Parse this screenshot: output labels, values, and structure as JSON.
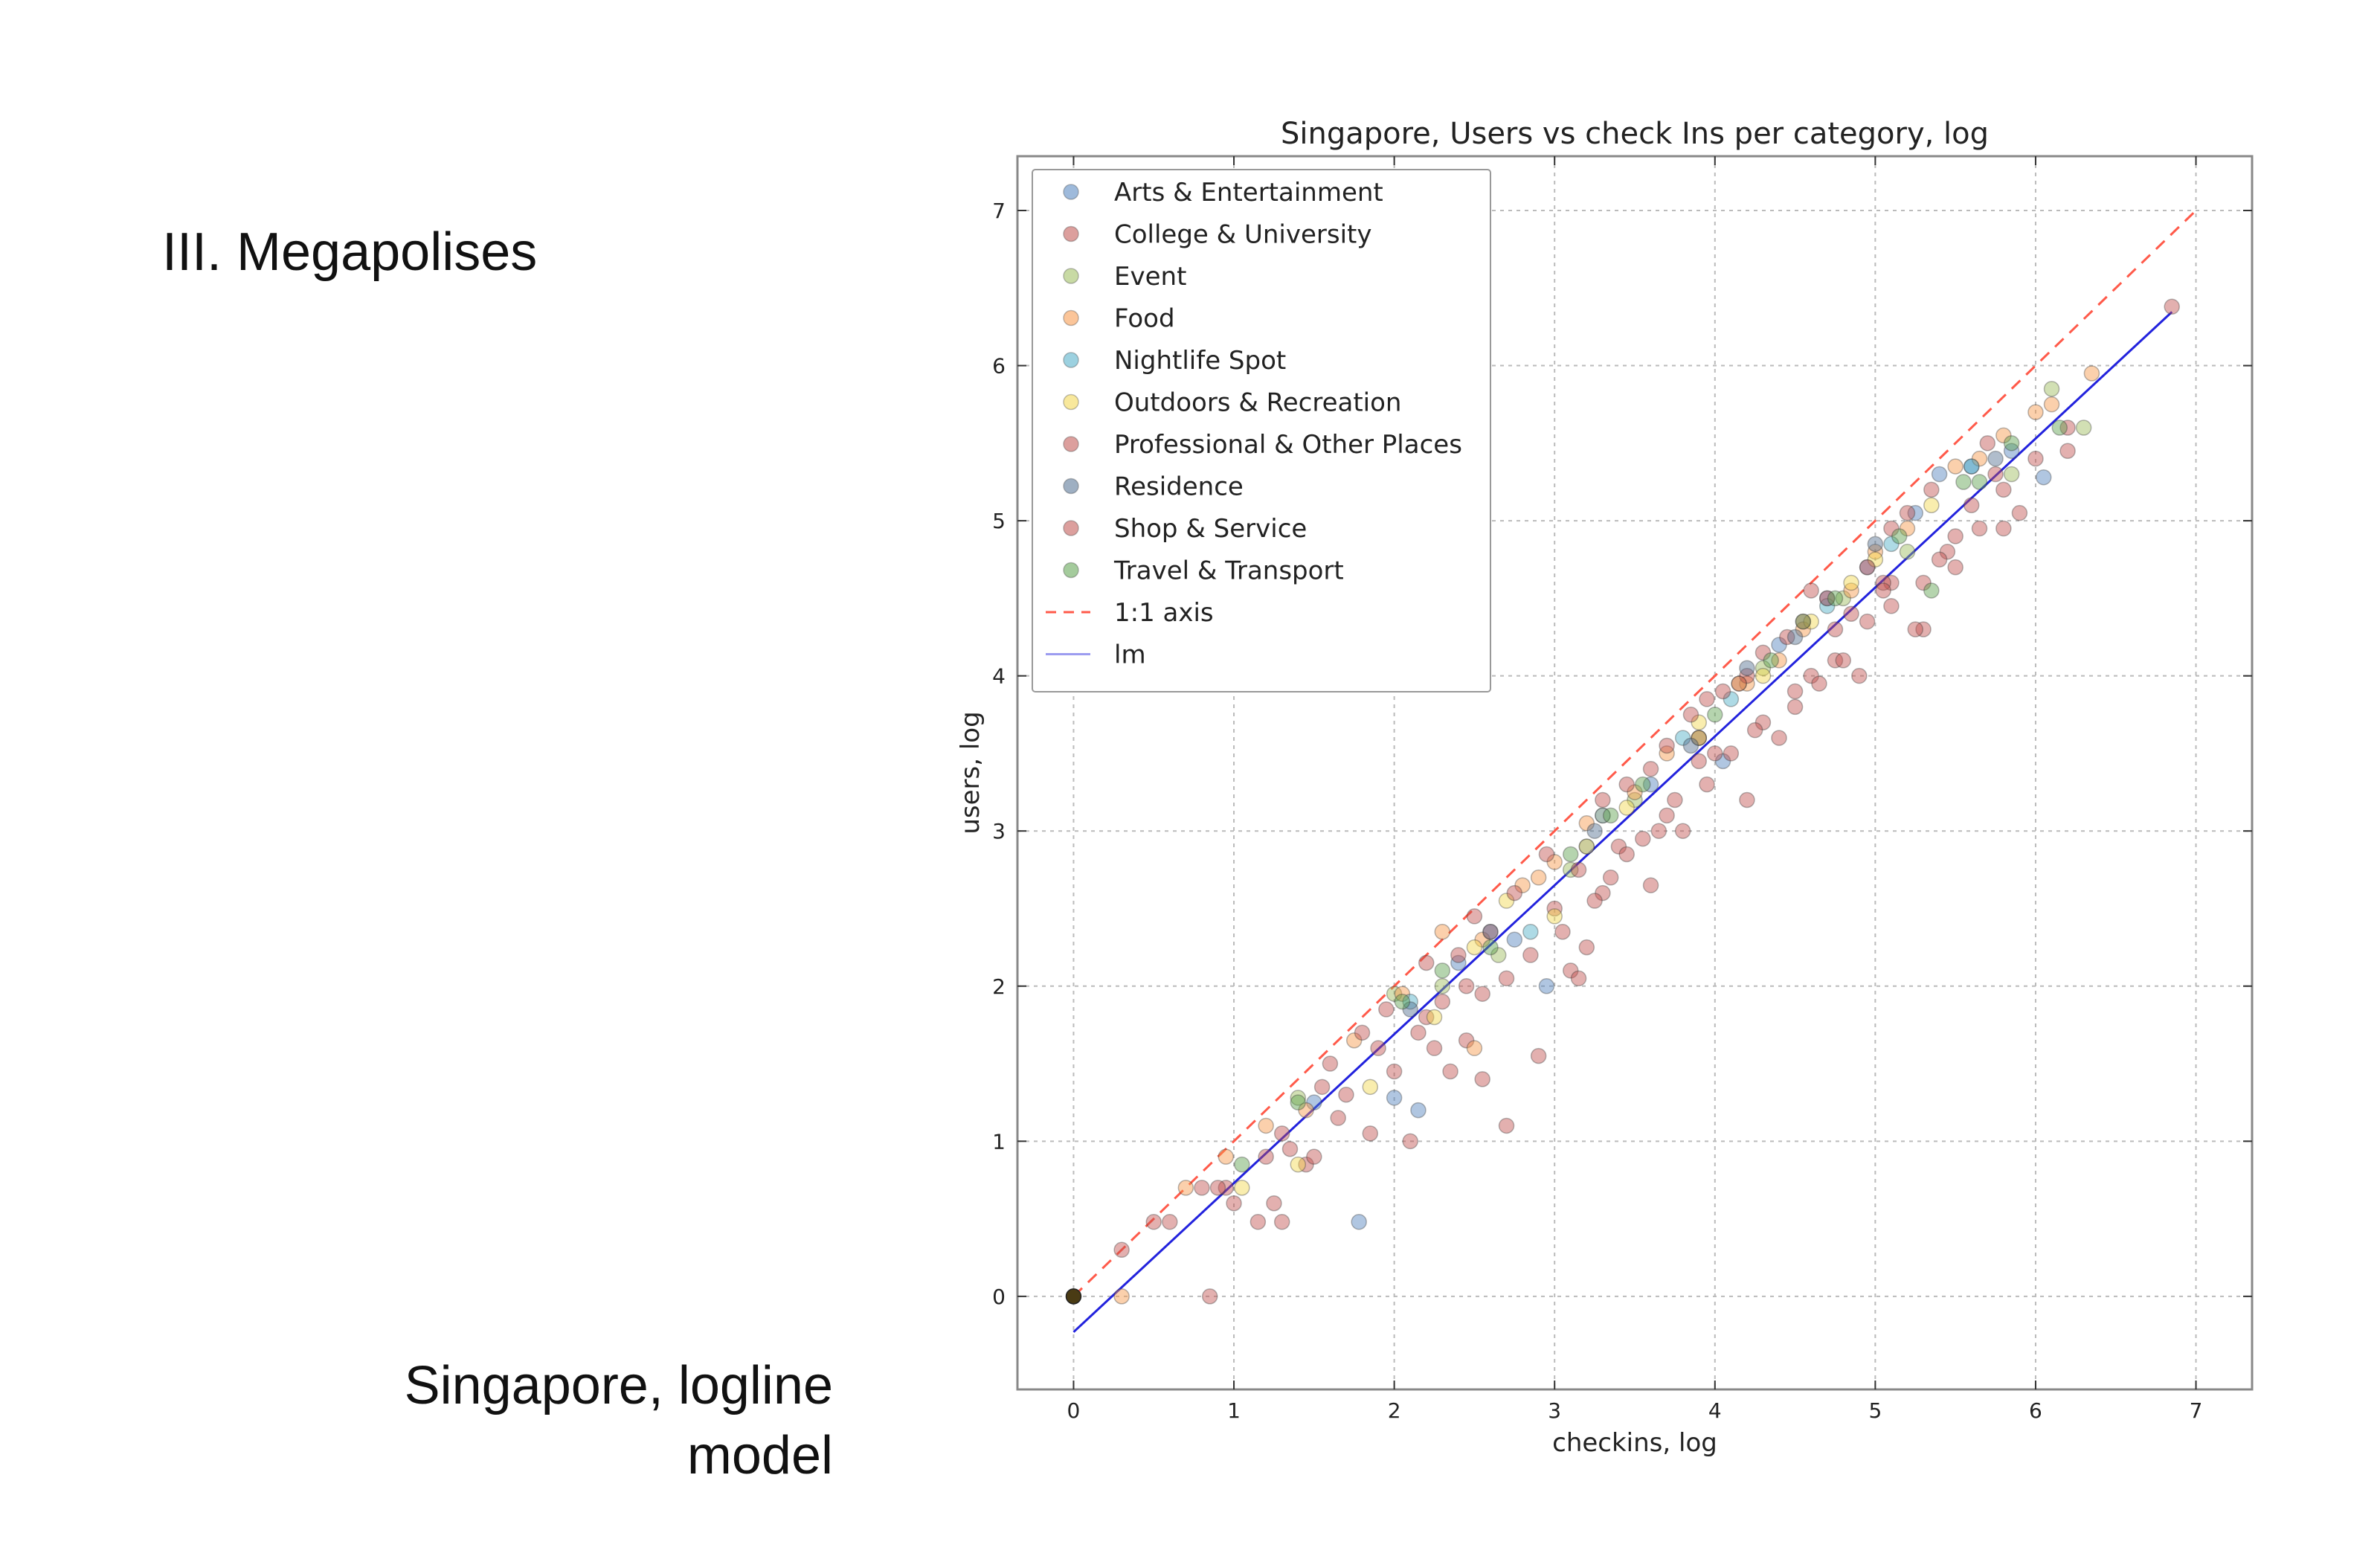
{
  "slide": {
    "heading": "III. Megapolises",
    "caption_line1": "Singapore, logline",
    "caption_line2": "model"
  },
  "chart_data": {
    "type": "scatter",
    "title": "Singapore, Users vs check Ins per category, log",
    "xlabel": "checkins, log",
    "ylabel": "users, log",
    "xlim": [
      -0.35,
      7.35
    ],
    "ylim": [
      -0.6,
      7.35
    ],
    "xticks": [
      0,
      1,
      2,
      3,
      4,
      5,
      6,
      7
    ],
    "yticks": [
      0,
      1,
      2,
      3,
      4,
      5,
      6,
      7
    ],
    "grid": true,
    "legend_position": "upper-left",
    "series": [
      {
        "name": "Arts & Entertainment",
        "color": "#4f81bd",
        "points": [
          [
            1.78,
            0.48
          ],
          [
            2.15,
            1.2
          ],
          [
            2.0,
            1.28
          ],
          [
            2.95,
            2.0
          ],
          [
            3.2,
            2.9
          ],
          [
            3.6,
            3.3
          ],
          [
            4.05,
            3.45
          ],
          [
            4.4,
            4.2
          ],
          [
            4.95,
            4.7
          ],
          [
            5.25,
            5.05
          ],
          [
            5.4,
            5.3
          ],
          [
            5.85,
            5.45
          ],
          [
            6.05,
            5.28
          ],
          [
            1.5,
            1.25
          ],
          [
            2.4,
            2.15
          ],
          [
            3.9,
            3.6
          ],
          [
            4.7,
            4.5
          ],
          [
            5.6,
            5.35
          ],
          [
            2.75,
            2.3
          ]
        ]
      },
      {
        "name": "College & University",
        "color": "#c0504d",
        "points": [
          [
            0.85,
            0.0
          ],
          [
            1.0,
            0.6
          ],
          [
            1.15,
            0.48
          ],
          [
            1.3,
            0.48
          ],
          [
            1.45,
            0.85
          ],
          [
            1.85,
            1.05
          ],
          [
            2.1,
            1.0
          ],
          [
            2.35,
            1.45
          ],
          [
            2.7,
            1.1
          ],
          [
            2.9,
            1.55
          ],
          [
            3.2,
            2.25
          ],
          [
            3.55,
            2.95
          ],
          [
            3.8,
            3.0
          ],
          [
            4.2,
            3.2
          ],
          [
            4.5,
            3.8
          ],
          [
            4.9,
            4.0
          ],
          [
            5.3,
            4.3
          ],
          [
            5.8,
            4.95
          ],
          [
            6.0,
            5.4
          ],
          [
            6.2,
            5.45
          ],
          [
            1.7,
            1.3
          ],
          [
            2.55,
            1.95
          ],
          [
            3.0,
            2.5
          ],
          [
            3.4,
            2.9
          ],
          [
            4.0,
            3.5
          ],
          [
            4.6,
            4.0
          ],
          [
            5.1,
            4.6
          ],
          [
            5.6,
            5.1
          ],
          [
            0.95,
            0.7
          ],
          [
            1.2,
            0.9
          ],
          [
            1.6,
            1.5
          ],
          [
            2.2,
            1.8
          ],
          [
            2.45,
            1.65
          ],
          [
            3.1,
            2.1
          ],
          [
            3.3,
            2.6
          ],
          [
            3.7,
            3.1
          ],
          [
            4.3,
            3.7
          ],
          [
            4.75,
            4.1
          ],
          [
            5.45,
            4.8
          ],
          [
            5.75,
            5.3
          ]
        ]
      },
      {
        "name": "Event",
        "color": "#9bbb59",
        "points": [
          [
            2.0,
            1.95
          ],
          [
            2.65,
            2.2
          ],
          [
            3.1,
            2.75
          ],
          [
            3.5,
            3.2
          ],
          [
            4.3,
            4.05
          ],
          [
            5.2,
            4.8
          ],
          [
            6.1,
            5.85
          ],
          [
            6.3,
            5.6
          ],
          [
            1.4,
            1.28
          ],
          [
            2.3,
            2.0
          ],
          [
            3.9,
            3.6
          ],
          [
            4.8,
            4.5
          ],
          [
            5.85,
            5.3
          ]
        ]
      },
      {
        "name": "Food",
        "color": "#f79646",
        "points": [
          [
            0.3,
            0.0
          ],
          [
            0.7,
            0.7
          ],
          [
            0.95,
            0.9
          ],
          [
            1.2,
            1.1
          ],
          [
            1.45,
            1.2
          ],
          [
            1.75,
            1.65
          ],
          [
            2.3,
            2.35
          ],
          [
            2.55,
            2.3
          ],
          [
            2.8,
            2.65
          ],
          [
            3.2,
            3.05
          ],
          [
            3.5,
            3.25
          ],
          [
            3.9,
            3.6
          ],
          [
            4.2,
            3.95
          ],
          [
            4.55,
            4.3
          ],
          [
            4.85,
            4.55
          ],
          [
            5.2,
            4.95
          ],
          [
            5.5,
            5.35
          ],
          [
            5.8,
            5.55
          ],
          [
            6.1,
            5.75
          ],
          [
            6.35,
            5.95
          ],
          [
            2.05,
            1.95
          ],
          [
            2.5,
            1.6
          ],
          [
            3.0,
            2.8
          ],
          [
            3.7,
            3.5
          ],
          [
            4.4,
            4.1
          ],
          [
            5.0,
            4.8
          ],
          [
            5.65,
            5.4
          ],
          [
            6.0,
            5.7
          ],
          [
            2.9,
            2.7
          ],
          [
            3.3,
            3.1
          ]
        ]
      },
      {
        "name": "Nightlife Spot",
        "color": "#4bacc6",
        "points": [
          [
            2.85,
            2.35
          ],
          [
            3.3,
            3.1
          ],
          [
            4.1,
            3.85
          ],
          [
            4.7,
            4.45
          ],
          [
            5.1,
            4.85
          ],
          [
            5.6,
            5.35
          ],
          [
            2.1,
            1.9
          ],
          [
            3.8,
            3.6
          ]
        ]
      },
      {
        "name": "Outdoors & Recreation",
        "color": "#f2d64b",
        "points": [
          [
            1.05,
            0.7
          ],
          [
            1.4,
            0.85
          ],
          [
            1.85,
            1.35
          ],
          [
            2.25,
            1.8
          ],
          [
            2.7,
            2.55
          ],
          [
            3.0,
            2.45
          ],
          [
            3.45,
            3.15
          ],
          [
            3.9,
            3.7
          ],
          [
            4.3,
            4.0
          ],
          [
            4.6,
            4.35
          ],
          [
            5.0,
            4.75
          ],
          [
            5.35,
            5.1
          ],
          [
            2.5,
            2.25
          ],
          [
            3.2,
            2.9
          ],
          [
            4.15,
            3.95
          ],
          [
            4.85,
            4.6
          ]
        ]
      },
      {
        "name": "Professional & Other Places",
        "color": "#c0504d",
        "points": [
          [
            0.3,
            0.3
          ],
          [
            0.5,
            0.48
          ],
          [
            0.6,
            0.48
          ],
          [
            0.8,
            0.7
          ],
          [
            1.3,
            1.05
          ],
          [
            1.55,
            1.35
          ],
          [
            1.8,
            1.7
          ],
          [
            2.2,
            2.15
          ],
          [
            2.5,
            2.45
          ],
          [
            2.75,
            2.6
          ],
          [
            2.95,
            2.85
          ],
          [
            3.15,
            2.75
          ],
          [
            3.45,
            3.3
          ],
          [
            3.7,
            3.55
          ],
          [
            3.95,
            3.85
          ],
          [
            4.2,
            4.0
          ],
          [
            4.45,
            4.25
          ],
          [
            4.7,
            4.5
          ],
          [
            4.95,
            4.7
          ],
          [
            5.2,
            5.05
          ],
          [
            5.5,
            4.9
          ],
          [
            5.8,
            5.2
          ],
          [
            6.2,
            5.6
          ],
          [
            6.85,
            6.38
          ],
          [
            2.4,
            2.2
          ],
          [
            3.3,
            3.2
          ],
          [
            4.05,
            3.9
          ],
          [
            4.6,
            4.55
          ],
          [
            5.1,
            4.95
          ],
          [
            5.35,
            5.2
          ],
          [
            5.7,
            5.5
          ],
          [
            1.95,
            1.85
          ],
          [
            2.6,
            2.35
          ],
          [
            3.6,
            3.4
          ],
          [
            4.3,
            4.15
          ],
          [
            4.85,
            4.4
          ],
          [
            5.05,
            4.6
          ],
          [
            3.85,
            3.75
          ],
          [
            4.15,
            3.95
          ],
          [
            4.55,
            4.35
          ]
        ]
      },
      {
        "name": "Residence",
        "color": "#4f6d8f",
        "points": [
          [
            2.6,
            2.35
          ],
          [
            3.25,
            3.0
          ],
          [
            3.85,
            3.55
          ],
          [
            4.5,
            4.25
          ],
          [
            5.0,
            4.85
          ],
          [
            5.75,
            5.4
          ],
          [
            2.1,
            1.85
          ],
          [
            4.2,
            4.05
          ]
        ]
      },
      {
        "name": "Shop & Service",
        "color": "#c0504d",
        "points": [
          [
            0.9,
            0.7
          ],
          [
            1.25,
            0.6
          ],
          [
            1.5,
            0.9
          ],
          [
            1.9,
            1.6
          ],
          [
            2.15,
            1.7
          ],
          [
            2.45,
            2.0
          ],
          [
            2.7,
            2.05
          ],
          [
            3.05,
            2.35
          ],
          [
            3.35,
            2.7
          ],
          [
            3.65,
            3.0
          ],
          [
            3.95,
            3.3
          ],
          [
            4.25,
            3.65
          ],
          [
            4.5,
            3.9
          ],
          [
            4.8,
            4.1
          ],
          [
            5.1,
            4.45
          ],
          [
            5.4,
            4.75
          ],
          [
            5.65,
            4.95
          ],
          [
            2.55,
            1.4
          ],
          [
            3.15,
            2.05
          ],
          [
            3.6,
            2.65
          ],
          [
            4.4,
            3.6
          ],
          [
            5.25,
            4.3
          ],
          [
            1.65,
            1.15
          ],
          [
            2.3,
            1.9
          ],
          [
            2.85,
            2.2
          ],
          [
            3.25,
            2.55
          ],
          [
            3.75,
            3.2
          ],
          [
            4.1,
            3.5
          ],
          [
            4.65,
            3.95
          ],
          [
            5.5,
            4.7
          ],
          [
            4.95,
            4.35
          ],
          [
            3.45,
            2.85
          ],
          [
            2.0,
            1.45
          ],
          [
            1.35,
            0.95
          ],
          [
            4.75,
            4.3
          ],
          [
            5.05,
            4.55
          ],
          [
            5.3,
            4.6
          ],
          [
            5.9,
            5.05
          ],
          [
            2.25,
            1.6
          ],
          [
            3.9,
            3.45
          ]
        ]
      },
      {
        "name": "Travel & Transport",
        "color": "#5aa04b",
        "points": [
          [
            1.05,
            0.85
          ],
          [
            1.4,
            1.25
          ],
          [
            2.05,
            1.9
          ],
          [
            2.6,
            2.25
          ],
          [
            3.1,
            2.85
          ],
          [
            3.55,
            3.3
          ],
          [
            4.0,
            3.75
          ],
          [
            4.35,
            4.1
          ],
          [
            4.75,
            4.5
          ],
          [
            5.15,
            4.9
          ],
          [
            5.55,
            5.25
          ],
          [
            5.85,
            5.5
          ],
          [
            6.15,
            5.6
          ],
          [
            2.3,
            2.1
          ],
          [
            3.35,
            3.1
          ],
          [
            4.55,
            4.35
          ],
          [
            5.35,
            4.55
          ],
          [
            5.65,
            5.25
          ]
        ]
      }
    ],
    "one_to_one": {
      "name": "1:1 axis",
      "color": "#ff5a4a",
      "x": [
        0,
        7
      ]
    },
    "lm": {
      "name": "lm",
      "color": "#2222dd",
      "intercept": -0.23,
      "slope": 0.96,
      "x": [
        0,
        6.85
      ]
    }
  }
}
